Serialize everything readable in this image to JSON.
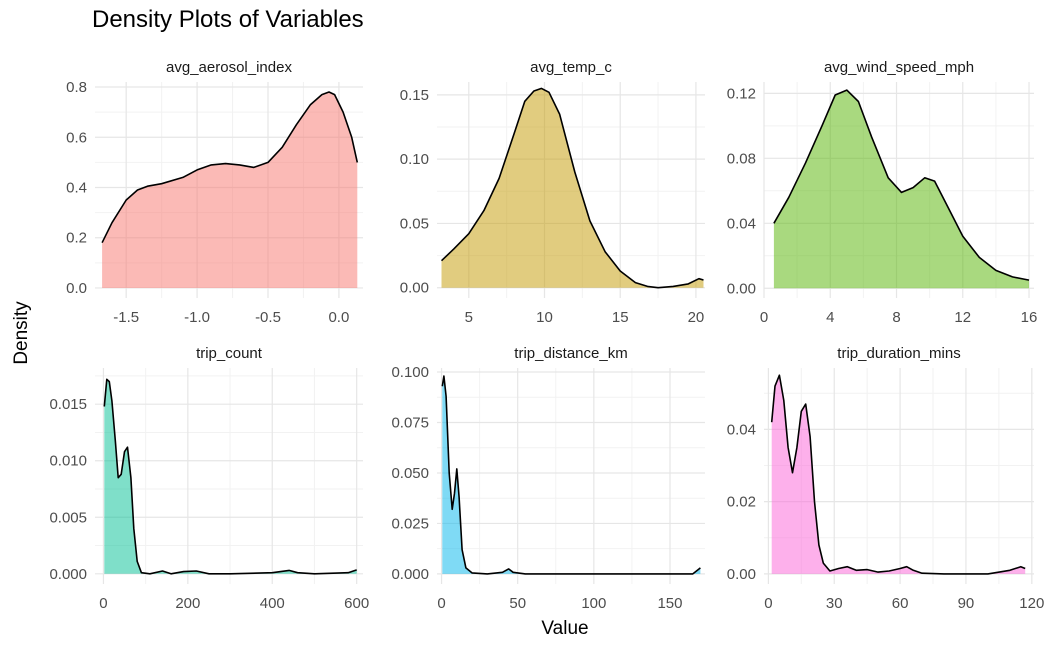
{
  "chart_data": {
    "type": "area",
    "title": "Density Plots of Variables",
    "xlabel": "Value",
    "ylabel": "Density",
    "grid": true,
    "facets": [
      {
        "name": "avg_aerosol_index",
        "color": "#F8766D",
        "xlim": [
          -1.72,
          0.17
        ],
        "ylim": [
          -0.04,
          0.82
        ],
        "xticks": [
          -1.5,
          -1.0,
          -0.5,
          0.0
        ],
        "xtick_labels": [
          "-1.5",
          "-1.0",
          "-0.5",
          "0.0"
        ],
        "yticks": [
          0.0,
          0.2,
          0.4,
          0.6,
          0.8
        ],
        "ytick_labels": [
          "0.0",
          "0.2",
          "0.4",
          "0.6",
          "0.8"
        ],
        "x": [
          -1.67,
          -1.6,
          -1.5,
          -1.42,
          -1.35,
          -1.25,
          -1.1,
          -1.0,
          -0.9,
          -0.8,
          -0.7,
          -0.6,
          -0.5,
          -0.4,
          -0.3,
          -0.2,
          -0.12,
          -0.07,
          -0.03,
          0.03,
          0.09,
          0.13
        ],
        "y": [
          0.18,
          0.26,
          0.35,
          0.39,
          0.405,
          0.415,
          0.44,
          0.47,
          0.49,
          0.495,
          0.49,
          0.48,
          0.5,
          0.56,
          0.65,
          0.73,
          0.77,
          0.78,
          0.77,
          0.7,
          0.6,
          0.5
        ]
      },
      {
        "name": "avg_temp_c",
        "color": "#C49A00",
        "xlim": [
          2.9,
          20.6
        ],
        "ylim": [
          -0.008,
          0.16
        ],
        "xticks": [
          5,
          10,
          15,
          20
        ],
        "xtick_labels": [
          "5",
          "10",
          "15",
          "20"
        ],
        "yticks": [
          0.0,
          0.05,
          0.1,
          0.15
        ],
        "ytick_labels": [
          "0.00",
          "0.05",
          "0.10",
          "0.15"
        ],
        "x": [
          3.2,
          4,
          5,
          6,
          7,
          8,
          8.7,
          9.3,
          9.8,
          10.3,
          11,
          12,
          13,
          14,
          15,
          16,
          16.8,
          17.5,
          18.5,
          19.5,
          20.2,
          20.5
        ],
        "y": [
          0.021,
          0.03,
          0.042,
          0.06,
          0.085,
          0.12,
          0.145,
          0.153,
          0.155,
          0.152,
          0.135,
          0.09,
          0.052,
          0.028,
          0.013,
          0.004,
          0.001,
          0.0,
          0.001,
          0.003,
          0.007,
          0.006
        ]
      },
      {
        "name": "avg_wind_speed_mph",
        "color": "#53B400",
        "xlim": [
          0,
          16.3
        ],
        "ylim": [
          -0.006,
          0.127
        ],
        "xticks": [
          0,
          4,
          8,
          12,
          16
        ],
        "xtick_labels": [
          "0",
          "4",
          "8",
          "12",
          "16"
        ],
        "yticks": [
          0.0,
          0.04,
          0.08,
          0.12
        ],
        "ytick_labels": [
          "0.00",
          "0.04",
          "0.08",
          "0.12"
        ],
        "x": [
          0.6,
          1.5,
          2.5,
          3.5,
          4.3,
          5,
          5.7,
          6.5,
          7.5,
          8.3,
          9,
          9.7,
          10.3,
          11,
          12,
          13,
          14,
          15,
          16
        ],
        "y": [
          0.04,
          0.056,
          0.077,
          0.1,
          0.119,
          0.122,
          0.115,
          0.093,
          0.068,
          0.059,
          0.062,
          0.068,
          0.066,
          0.052,
          0.032,
          0.019,
          0.011,
          0.007,
          0.005
        ]
      },
      {
        "name": "trip_count",
        "color": "#00C094",
        "xlim": [
          -20,
          615
        ],
        "ylim": [
          -0.0009,
          0.0182
        ],
        "xticks": [
          0,
          200,
          400,
          600
        ],
        "xtick_labels": [
          "0",
          "200",
          "400",
          "600"
        ],
        "yticks": [
          0.0,
          0.005,
          0.01,
          0.015
        ],
        "ytick_labels": [
          "0.000",
          "0.005",
          "0.010",
          "0.015"
        ],
        "x": [
          2,
          8,
          14,
          20,
          28,
          35,
          42,
          50,
          57,
          65,
          72,
          80,
          90,
          110,
          140,
          160,
          190,
          220,
          250,
          300,
          400,
          440,
          460,
          500,
          580,
          600
        ],
        "y": [
          0.0148,
          0.0172,
          0.017,
          0.0153,
          0.0118,
          0.0085,
          0.0088,
          0.0108,
          0.0112,
          0.0085,
          0.004,
          0.0011,
          0.0001,
          0.0,
          0.00025,
          0.0,
          0.0002,
          0.00025,
          0.0,
          0.0,
          0.0001,
          0.0003,
          0.0001,
          0.0,
          0.0001,
          0.00035
        ]
      },
      {
        "name": "trip_distance_km",
        "color": "#00B6EB",
        "xlim": [
          -3,
          173
        ],
        "ylim": [
          -0.005,
          0.102
        ],
        "xticks": [
          0,
          50,
          100,
          150
        ],
        "xtick_labels": [
          "0",
          "50",
          "100",
          "150"
        ],
        "yticks": [
          0.0,
          0.025,
          0.05,
          0.075,
          0.1
        ],
        "ytick_labels": [
          "0.000",
          "0.025",
          "0.050",
          "0.075",
          "0.100"
        ],
        "x": [
          0.5,
          1.5,
          3,
          5,
          7,
          8.5,
          10,
          11.5,
          13.5,
          16,
          20,
          30,
          40,
          44,
          47,
          55,
          100,
          165,
          170
        ],
        "y": [
          0.093,
          0.098,
          0.088,
          0.05,
          0.032,
          0.04,
          0.052,
          0.038,
          0.012,
          0.003,
          0.0005,
          0.0,
          0.0008,
          0.0025,
          0.0008,
          0.0,
          0.0,
          0.0,
          0.003
        ]
      },
      {
        "name": "trip_duration_mins",
        "color": "#FB61D7",
        "xlim": [
          -2,
          121
        ],
        "ylim": [
          -0.0028,
          0.057
        ],
        "xticks": [
          0,
          30,
          60,
          90,
          120
        ],
        "xtick_labels": [
          "0",
          "30",
          "60",
          "90",
          "120"
        ],
        "yticks": [
          0.0,
          0.02,
          0.04
        ],
        "ytick_labels": [
          "0.00",
          "0.02",
          "0.04"
        ],
        "x": [
          1.5,
          3,
          5,
          7,
          9,
          11,
          13,
          15,
          17,
          19,
          21,
          23,
          25,
          28,
          32,
          36,
          40,
          45,
          50,
          55,
          60,
          63,
          66,
          70,
          80,
          100,
          110,
          115,
          117
        ],
        "y": [
          0.042,
          0.052,
          0.055,
          0.048,
          0.035,
          0.028,
          0.035,
          0.045,
          0.047,
          0.038,
          0.02,
          0.008,
          0.003,
          0.0008,
          0.0015,
          0.002,
          0.001,
          0.0012,
          0.0005,
          0.0008,
          0.0015,
          0.002,
          0.001,
          0.0002,
          0.0,
          0.0,
          0.001,
          0.002,
          0.0015
        ]
      }
    ]
  }
}
